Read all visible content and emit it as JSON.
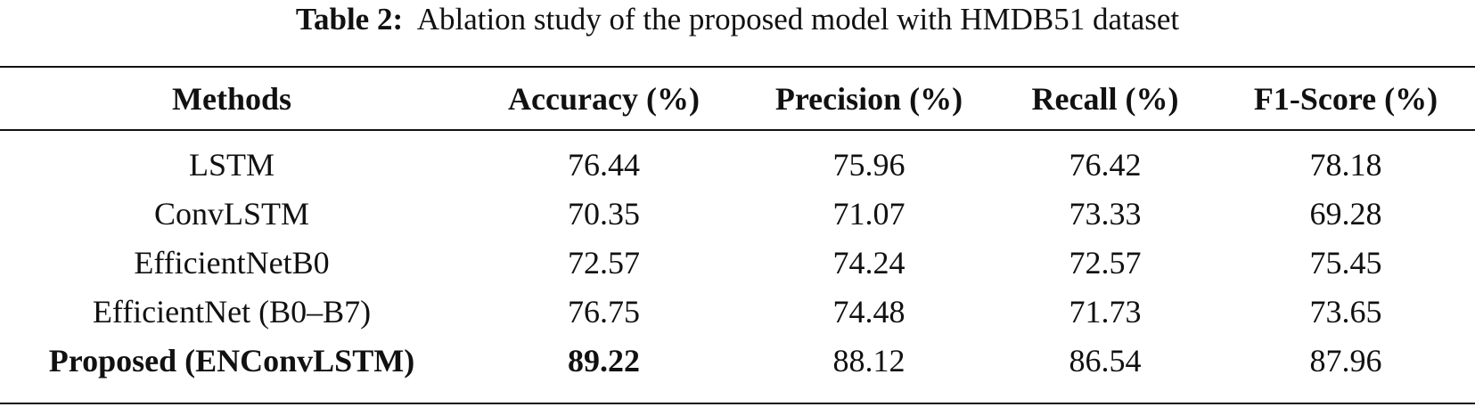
{
  "caption": {
    "label": "Table 2:",
    "text": "Ablation study of the proposed model with HMDB51 dataset"
  },
  "table": {
    "headers": [
      "Methods",
      "Accuracy (%)",
      "Precision (%)",
      "Recall (%)",
      "F1-Score (%)"
    ],
    "rows": [
      {
        "method": "LSTM",
        "accuracy": "76.44",
        "precision": "75.96",
        "recall": "76.42",
        "f1": "78.18"
      },
      {
        "method": "ConvLSTM",
        "accuracy": "70.35",
        "precision": "71.07",
        "recall": "73.33",
        "f1": "69.28"
      },
      {
        "method": "EfficientNetB0",
        "accuracy": "72.57",
        "precision": "74.24",
        "recall": "72.57",
        "f1": "75.45"
      },
      {
        "method": "EfficientNet (B0–B7)",
        "accuracy": "76.75",
        "precision": "74.48",
        "recall": "71.73",
        "f1": "73.65"
      },
      {
        "method": "Proposed (ENConvLSTM)",
        "accuracy": "89.22",
        "precision": "88.12",
        "recall": "86.54",
        "f1": "87.96"
      }
    ]
  }
}
